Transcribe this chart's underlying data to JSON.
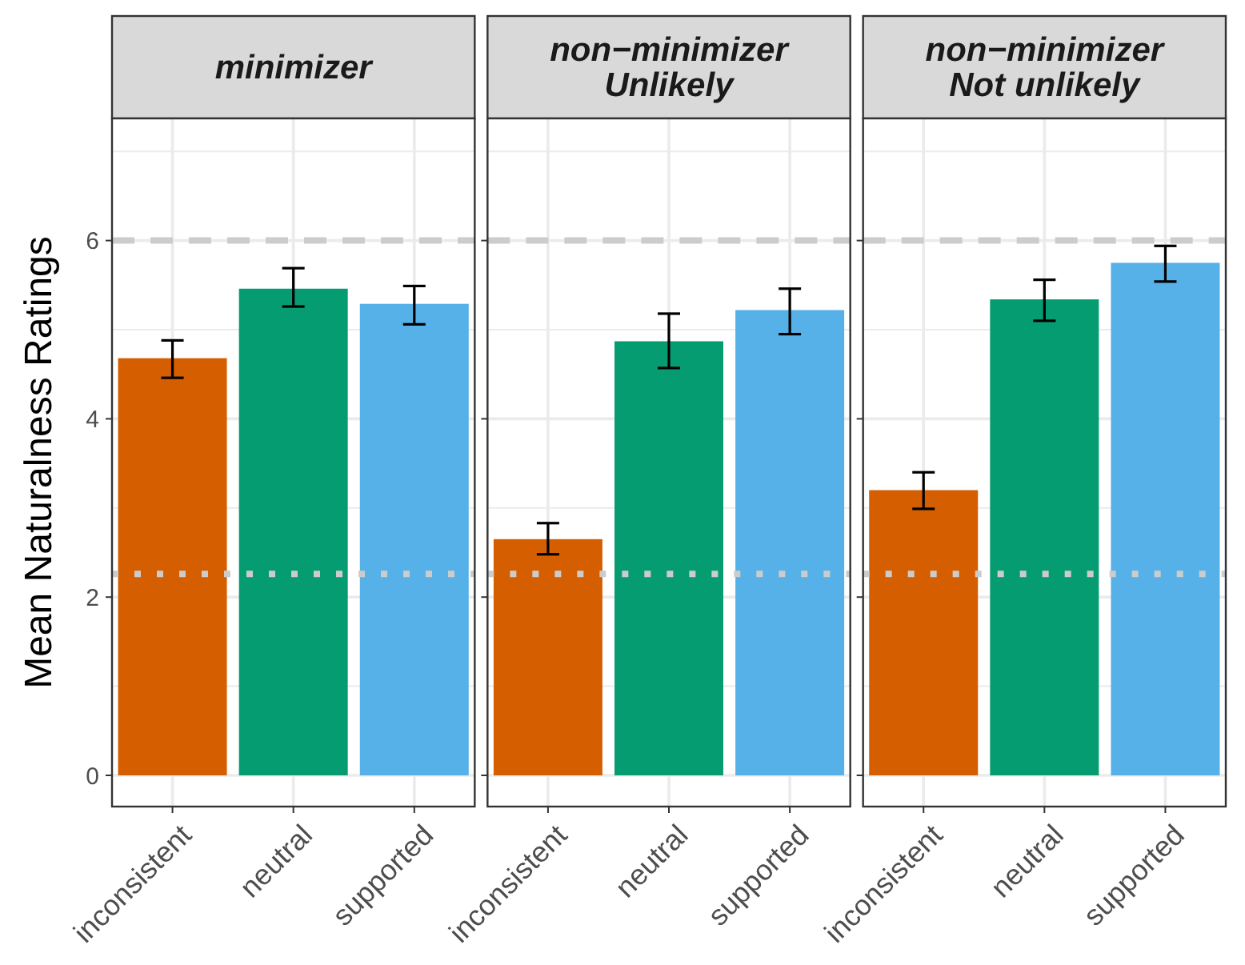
{
  "chart_data": [
    {
      "type": "bar",
      "title": "minimizer",
      "ylabel": "Mean Naturalness Ratings",
      "categories": [
        "inconsistent",
        "neutral",
        "supported"
      ],
      "values": [
        4.68,
        5.46,
        5.29
      ],
      "colors": [
        "#d55e00",
        "#069c72",
        "#56b1e8"
      ],
      "errors": [
        [
          4.46,
          4.88
        ],
        [
          5.26,
          5.69
        ],
        [
          5.06,
          5.49
        ]
      ],
      "ylim": [
        -0.35,
        7.37
      ],
      "yticks": [
        0,
        2,
        4,
        6
      ],
      "grid": true,
      "ref_lines": [
        {
          "axis": "y",
          "value": 6,
          "line_style": "dashed",
          "color": "#cccccc"
        },
        {
          "axis": "y",
          "value": 2.26,
          "line_style": "dotted",
          "color": "#cccccc"
        }
      ]
    },
    {
      "type": "bar",
      "title": "non−minimizer\nUnlikely",
      "categories": [
        "inconsistent",
        "neutral",
        "supported"
      ],
      "values": [
        2.65,
        4.87,
        5.22
      ],
      "colors": [
        "#d55e00",
        "#069c72",
        "#56b1e8"
      ],
      "errors": [
        [
          2.48,
          2.83
        ],
        [
          4.57,
          5.18
        ],
        [
          4.95,
          5.46
        ]
      ],
      "ylim": [
        -0.35,
        7.37
      ],
      "yticks": [
        0,
        2,
        4,
        6
      ],
      "grid": true,
      "tick_labels": "x",
      "ref_lines": [
        {
          "axis": "y",
          "value": 6,
          "line_style": "dashed",
          "color": "#cccccc"
        },
        {
          "axis": "y",
          "value": 2.26,
          "line_style": "dotted",
          "color": "#cccccc"
        }
      ]
    },
    {
      "type": "bar",
      "title": "non−minimizer\nNot unlikely",
      "categories": [
        "inconsistent",
        "neutral",
        "supported"
      ],
      "values": [
        3.2,
        5.34,
        5.75
      ],
      "colors": [
        "#d55e00",
        "#069c72",
        "#56b1e8"
      ],
      "errors": [
        [
          2.99,
          3.4
        ],
        [
          5.1,
          5.56
        ],
        [
          5.54,
          5.94
        ]
      ],
      "ylim": [
        -0.35,
        7.37
      ],
      "yticks": [
        0,
        2,
        4,
        6
      ],
      "grid": true,
      "tick_labels": "x",
      "ref_lines": [
        {
          "axis": "y",
          "value": 6,
          "line_style": "dashed",
          "color": "#cccccc"
        },
        {
          "axis": "y",
          "value": 2.26,
          "line_style": "dotted",
          "color": "#cccccc"
        }
      ]
    }
  ]
}
